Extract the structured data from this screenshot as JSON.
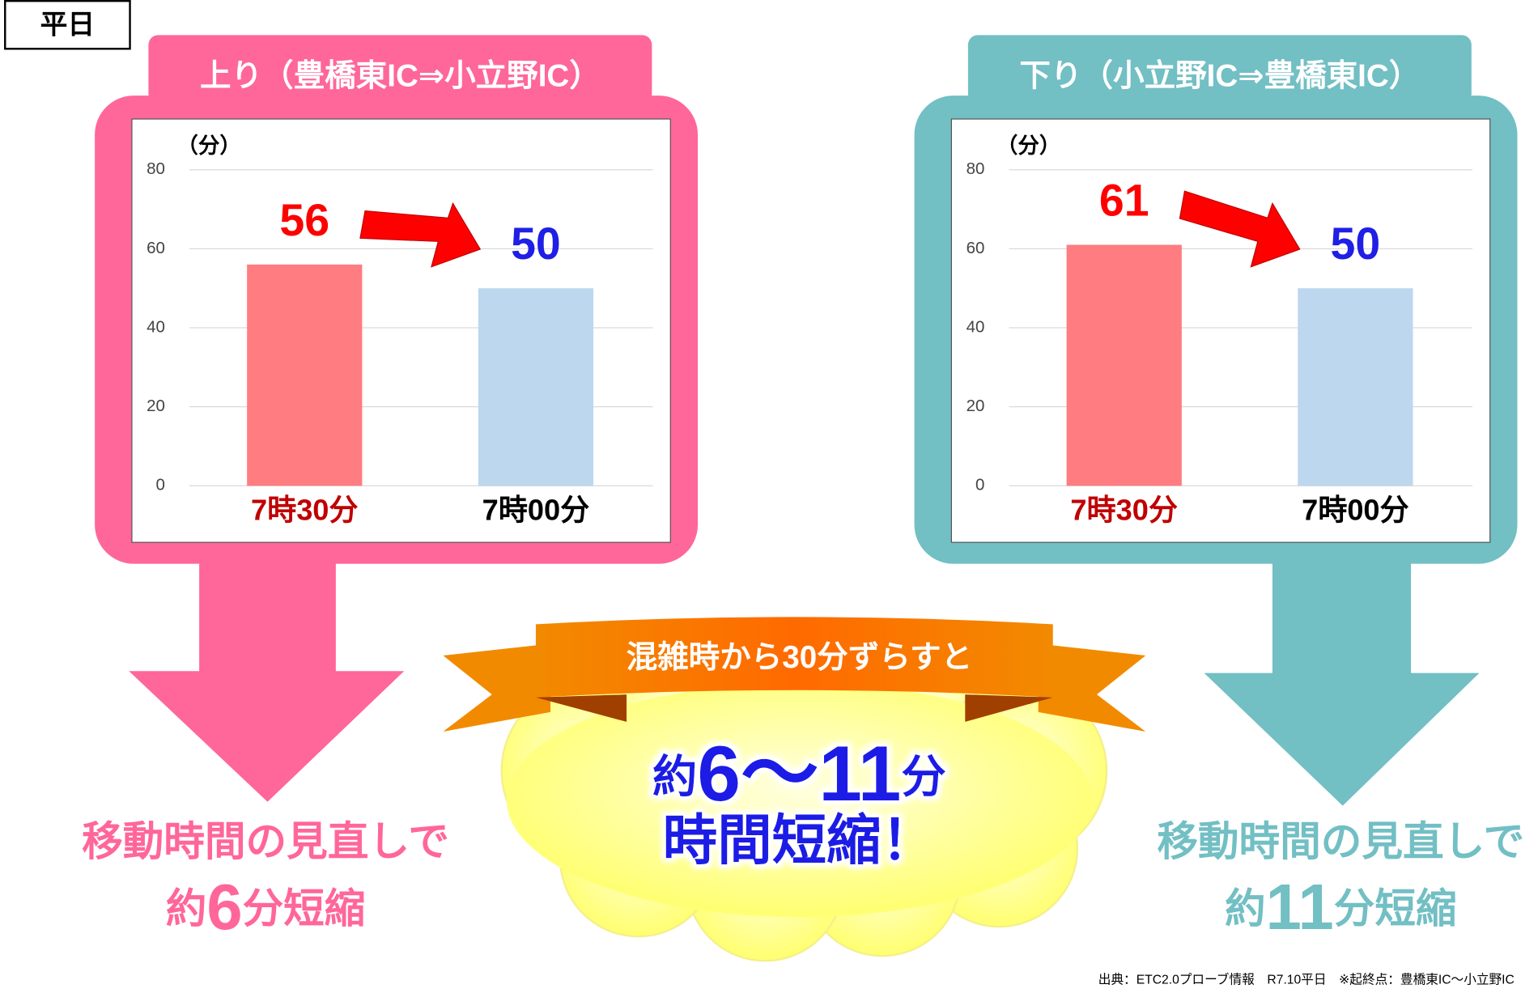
{
  "label": "平日",
  "chart_data": [
    {
      "type": "bar",
      "title": "上り（豊橋東IC⇒小立野IC）",
      "y_label": "（分）",
      "categories": [
        "7時30分",
        "7時00分"
      ],
      "values": [
        56,
        50
      ],
      "colors": [
        "#ff7c80",
        "#bdd7ee"
      ],
      "value_label_colors": [
        "#ff0000",
        "#1f1fe6"
      ],
      "category_colors": [
        "#c00000",
        "#000000"
      ],
      "frame_color": "#ff6699",
      "ylim": [
        0,
        80
      ],
      "yticks": [
        0,
        20,
        40,
        60,
        80
      ],
      "grid": true
    },
    {
      "type": "bar",
      "title": "下り（小立野IC⇒豊橋東IC）",
      "y_label": "（分）",
      "categories": [
        "7時30分",
        "7時00分"
      ],
      "values": [
        61,
        50
      ],
      "colors": [
        "#ff7c80",
        "#bdd7ee"
      ],
      "value_label_colors": [
        "#ff0000",
        "#1f1fe6"
      ],
      "category_colors": [
        "#c00000",
        "#000000"
      ],
      "frame_color": "#72bfc4",
      "ylim": [
        0,
        80
      ],
      "yticks": [
        0,
        20,
        40,
        60,
        80
      ],
      "grid": true
    }
  ],
  "results": [
    {
      "line1": "移動時間の見直しで",
      "prefix": "約",
      "value": 6,
      "unit": "分短縮"
    },
    {
      "line1": "移動時間の見直しで",
      "prefix": "約",
      "value": 11,
      "unit": "分短縮"
    }
  ],
  "center": {
    "banner": "混雑時から30分ずらすと",
    "prefix": "約",
    "range": "6〜11",
    "unit": "分",
    "line2": "時間短縮！"
  },
  "source": "出典：ETC2.0プローブ情報　R7.10平日　※起終点：豊橋東IC～小立野IC"
}
